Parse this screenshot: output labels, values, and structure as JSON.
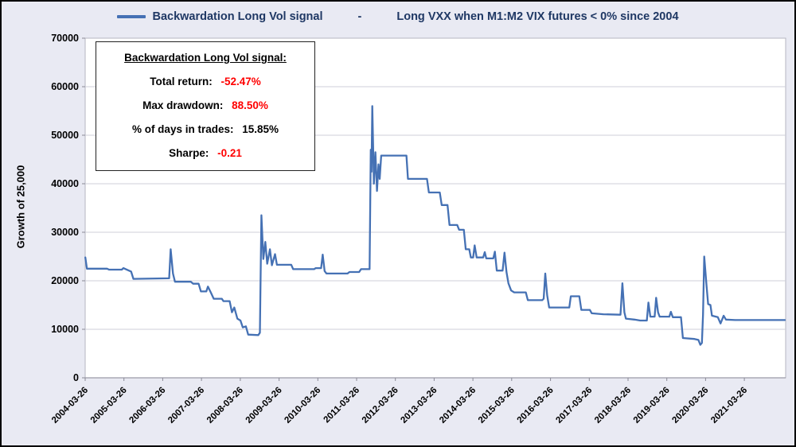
{
  "header": {
    "legend_label": "Backwardation Long Vol signal",
    "separator": "-",
    "subtitle": "Long VXX when M1:M2 VIX futures < 0% since 2004",
    "title_color": "#1f3864"
  },
  "stats_box": {
    "title": "Backwardation Long Vol signal:",
    "rows": [
      {
        "label": "Total return:",
        "value": "-52.47%",
        "value_color": "#ff0000"
      },
      {
        "label": "Max drawdown:",
        "value": "88.50%",
        "value_color": "#ff0000"
      },
      {
        "label": "% of days in trades:",
        "value": "15.85%",
        "value_color": "#000000"
      },
      {
        "label": "Sharpe:",
        "value": "-0.21",
        "value_color": "#ff0000"
      }
    ]
  },
  "chart_data": {
    "type": "line",
    "title": "Backwardation Long Vol signal - Long VXX when M1:M2 VIX futures < 0% since 2004",
    "xlabel": "",
    "ylabel": "Growth of 25,000",
    "ylim": [
      0,
      70000
    ],
    "yticks": [
      0,
      10000,
      20000,
      30000,
      40000,
      50000,
      60000,
      70000
    ],
    "x_tick_labels": [
      "2004-03-26",
      "2005-03-26",
      "2006-03-26",
      "2007-03-26",
      "2008-03-26",
      "2009-03-26",
      "2010-03-26",
      "2011-03-26",
      "2012-03-26",
      "2013-03-26",
      "2014-03-26",
      "2015-03-26",
      "2016-03-26",
      "2017-03-26",
      "2018-03-26",
      "2019-03-26",
      "2020-03-26",
      "2021-03-26"
    ],
    "x_range_years": [
      2004.235,
      2022.3
    ],
    "grid": "horizontal-only",
    "legend_position": "top-center",
    "plot_background": "#ffffff",
    "gridline_color": "#cfcfda",
    "series": [
      {
        "name": "Backwardation Long Vol signal",
        "color": "#4571b4",
        "points": [
          [
            2004.24,
            24800
          ],
          [
            2004.28,
            22500
          ],
          [
            2004.8,
            22500
          ],
          [
            2004.85,
            22300
          ],
          [
            2005.18,
            22300
          ],
          [
            2005.22,
            22600
          ],
          [
            2005.42,
            21900
          ],
          [
            2005.48,
            20400
          ],
          [
            2006.4,
            20500
          ],
          [
            2006.44,
            26500
          ],
          [
            2006.5,
            21500
          ],
          [
            2006.55,
            19800
          ],
          [
            2006.96,
            19800
          ],
          [
            2007.02,
            19400
          ],
          [
            2007.16,
            19400
          ],
          [
            2007.22,
            17800
          ],
          [
            2007.36,
            17800
          ],
          [
            2007.4,
            18800
          ],
          [
            2007.48,
            17500
          ],
          [
            2007.55,
            16300
          ],
          [
            2007.76,
            16300
          ],
          [
            2007.8,
            15800
          ],
          [
            2007.96,
            15800
          ],
          [
            2008.02,
            13500
          ],
          [
            2008.08,
            14500
          ],
          [
            2008.16,
            12200
          ],
          [
            2008.24,
            11800
          ],
          [
            2008.3,
            10400
          ],
          [
            2008.38,
            10600
          ],
          [
            2008.44,
            8900
          ],
          [
            2008.7,
            8800
          ],
          [
            2008.74,
            9300
          ],
          [
            2008.78,
            33500
          ],
          [
            2008.83,
            24500
          ],
          [
            2008.88,
            28000
          ],
          [
            2008.93,
            23500
          ],
          [
            2009.0,
            26500
          ],
          [
            2009.05,
            23200
          ],
          [
            2009.13,
            25500
          ],
          [
            2009.18,
            23300
          ],
          [
            2009.55,
            23300
          ],
          [
            2009.6,
            22400
          ],
          [
            2010.14,
            22400
          ],
          [
            2010.18,
            22600
          ],
          [
            2010.32,
            22600
          ],
          [
            2010.36,
            25400
          ],
          [
            2010.41,
            22000
          ],
          [
            2010.46,
            21500
          ],
          [
            2011.0,
            21500
          ],
          [
            2011.05,
            21800
          ],
          [
            2011.3,
            21800
          ],
          [
            2011.35,
            22400
          ],
          [
            2011.57,
            22400
          ],
          [
            2011.6,
            47000
          ],
          [
            2011.62,
            42500
          ],
          [
            2011.64,
            56000
          ],
          [
            2011.68,
            40000
          ],
          [
            2011.72,
            46500
          ],
          [
            2011.76,
            38500
          ],
          [
            2011.8,
            44000
          ],
          [
            2011.83,
            41000
          ],
          [
            2011.87,
            45800
          ],
          [
            2012.52,
            45800
          ],
          [
            2012.56,
            41000
          ],
          [
            2013.05,
            41000
          ],
          [
            2013.1,
            38200
          ],
          [
            2013.38,
            38200
          ],
          [
            2013.43,
            35600
          ],
          [
            2013.58,
            35600
          ],
          [
            2013.63,
            31500
          ],
          [
            2013.83,
            31500
          ],
          [
            2013.88,
            30500
          ],
          [
            2014.0,
            30500
          ],
          [
            2014.05,
            26500
          ],
          [
            2014.14,
            26500
          ],
          [
            2014.18,
            24800
          ],
          [
            2014.24,
            24800
          ],
          [
            2014.28,
            27300
          ],
          [
            2014.33,
            24800
          ],
          [
            2014.5,
            24800
          ],
          [
            2014.54,
            25900
          ],
          [
            2014.58,
            24600
          ],
          [
            2014.76,
            24600
          ],
          [
            2014.8,
            26000
          ],
          [
            2014.85,
            22100
          ],
          [
            2015.0,
            22100
          ],
          [
            2015.05,
            25800
          ],
          [
            2015.1,
            21800
          ],
          [
            2015.15,
            19500
          ],
          [
            2015.22,
            18000
          ],
          [
            2015.3,
            17600
          ],
          [
            2015.6,
            17600
          ],
          [
            2015.65,
            16000
          ],
          [
            2016.02,
            16000
          ],
          [
            2016.06,
            16300
          ],
          [
            2016.1,
            21500
          ],
          [
            2016.15,
            17000
          ],
          [
            2016.2,
            14500
          ],
          [
            2016.72,
            14500
          ],
          [
            2016.76,
            16800
          ],
          [
            2016.98,
            16800
          ],
          [
            2017.03,
            14000
          ],
          [
            2017.25,
            14000
          ],
          [
            2017.3,
            13300
          ],
          [
            2017.6,
            13100
          ],
          [
            2018.04,
            13000
          ],
          [
            2018.09,
            19500
          ],
          [
            2018.14,
            13500
          ],
          [
            2018.18,
            12200
          ],
          [
            2018.4,
            12000
          ],
          [
            2018.55,
            11800
          ],
          [
            2018.72,
            11800
          ],
          [
            2018.76,
            15500
          ],
          [
            2018.81,
            12600
          ],
          [
            2018.92,
            12600
          ],
          [
            2018.96,
            16500
          ],
          [
            2019.01,
            13500
          ],
          [
            2019.05,
            12600
          ],
          [
            2019.3,
            12600
          ],
          [
            2019.34,
            13600
          ],
          [
            2019.39,
            12500
          ],
          [
            2019.6,
            12500
          ],
          [
            2019.65,
            8200
          ],
          [
            2019.95,
            8000
          ],
          [
            2020.05,
            7800
          ],
          [
            2020.1,
            6800
          ],
          [
            2020.14,
            7200
          ],
          [
            2020.17,
            13000
          ],
          [
            2020.2,
            25000
          ],
          [
            2020.26,
            19000
          ],
          [
            2020.3,
            15200
          ],
          [
            2020.36,
            15000
          ],
          [
            2020.4,
            12800
          ],
          [
            2020.55,
            12500
          ],
          [
            2020.62,
            11200
          ],
          [
            2020.7,
            12800
          ],
          [
            2020.76,
            12000
          ],
          [
            2021.0,
            11900
          ],
          [
            2022.28,
            11900
          ]
        ]
      }
    ]
  }
}
